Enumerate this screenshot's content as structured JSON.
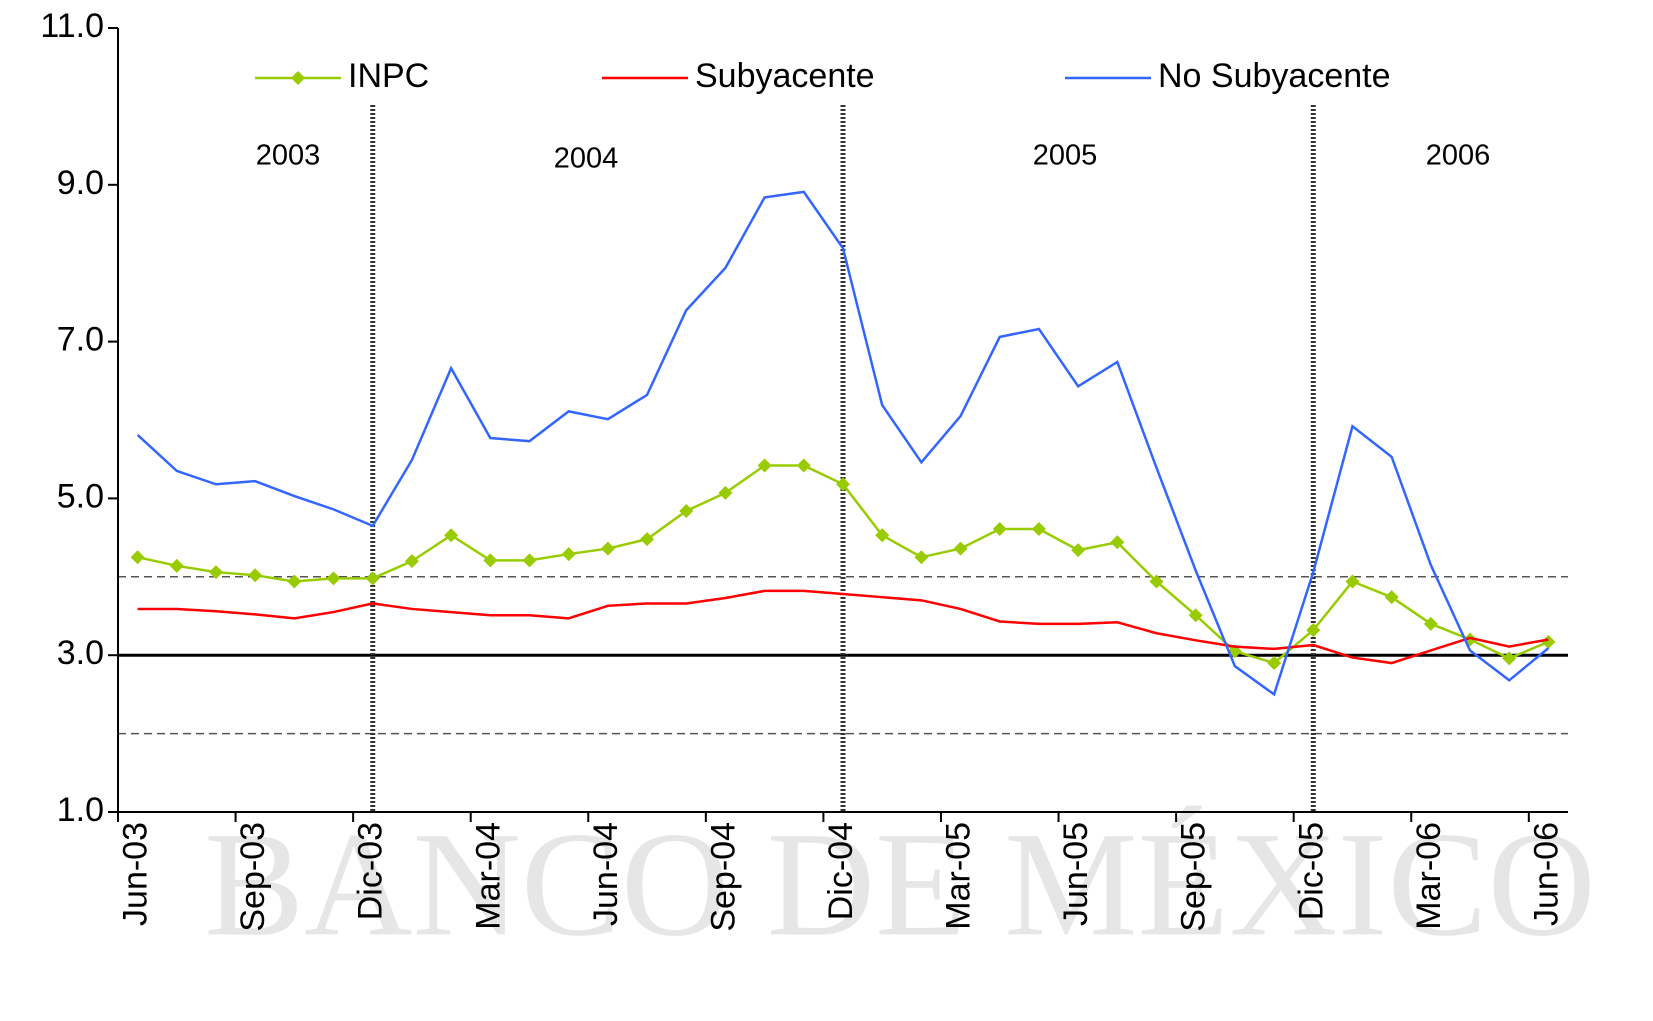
{
  "chart_data": {
    "type": "line",
    "watermark": "BANCO DE MÉXICO",
    "annotations": [
      "2003",
      "2004",
      "2005",
      "2006"
    ],
    "categories": [
      "Jun-03",
      null,
      null,
      "Sep-03",
      null,
      null,
      "Dic-03",
      null,
      null,
      "Mar-04",
      null,
      null,
      "Jun-04",
      null,
      null,
      "Sep-04",
      null,
      null,
      "Dic-04",
      null,
      null,
      "Mar-05",
      null,
      null,
      "Jun-05",
      null,
      null,
      "Sep-05",
      null,
      null,
      "Dic-05",
      null,
      null,
      "Mar-06",
      null,
      null,
      "Jun-06"
    ],
    "series": [
      {
        "name": "INPC",
        "color": "#99cc00",
        "marker": "diamond",
        "values": [
          4.25,
          4.14,
          4.06,
          4.02,
          3.94,
          3.98,
          3.98,
          4.2,
          4.53,
          4.21,
          4.21,
          4.29,
          4.36,
          4.48,
          4.84,
          5.07,
          5.42,
          5.42,
          5.18,
          4.53,
          4.25,
          4.36,
          4.61,
          4.61,
          4.34,
          4.44,
          3.94,
          3.51,
          3.05,
          2.9,
          3.32,
          3.94,
          3.74,
          3.4,
          3.2,
          2.96,
          3.17
        ]
      },
      {
        "name": "Subyacente",
        "color": "#ff0000",
        "values": [
          3.59,
          3.59,
          3.56,
          3.52,
          3.47,
          3.55,
          3.66,
          3.59,
          3.55,
          3.51,
          3.51,
          3.47,
          3.63,
          3.66,
          3.66,
          3.73,
          3.82,
          3.82,
          3.78,
          3.74,
          3.7,
          3.59,
          3.43,
          3.4,
          3.4,
          3.42,
          3.28,
          3.19,
          3.11,
          3.08,
          3.13,
          2.97,
          2.9,
          3.06,
          3.22,
          3.11,
          3.2
        ]
      },
      {
        "name": "No Subyacente",
        "color": "#3366ff",
        "values": [
          5.81,
          5.35,
          5.18,
          5.22,
          5.03,
          4.86,
          4.65,
          5.49,
          6.66,
          5.77,
          5.73,
          6.11,
          6.01,
          6.32,
          7.4,
          7.94,
          8.84,
          8.91,
          8.19,
          6.19,
          5.46,
          6.05,
          7.06,
          7.16,
          6.43,
          6.74,
          5.39,
          4.08,
          2.86,
          2.5,
          4.06,
          5.92,
          5.53,
          4.15,
          3.06,
          2.68,
          3.09
        ]
      }
    ],
    "hlines": [
      {
        "value": 3,
        "style": "solid"
      },
      {
        "value": 2,
        "style": "dashed"
      },
      {
        "value": 4,
        "style": "dashed"
      }
    ],
    "ylim": [
      1,
      11
    ],
    "yticks": [
      {
        "value": 1,
        "label": "1.0"
      },
      {
        "value": 3,
        "label": "3.0"
      },
      {
        "value": 5,
        "label": "5.0"
      },
      {
        "value": 7,
        "label": "7.0"
      },
      {
        "value": 9,
        "label": "9.0"
      },
      {
        "value": 11,
        "label": "11.0"
      }
    ]
  }
}
